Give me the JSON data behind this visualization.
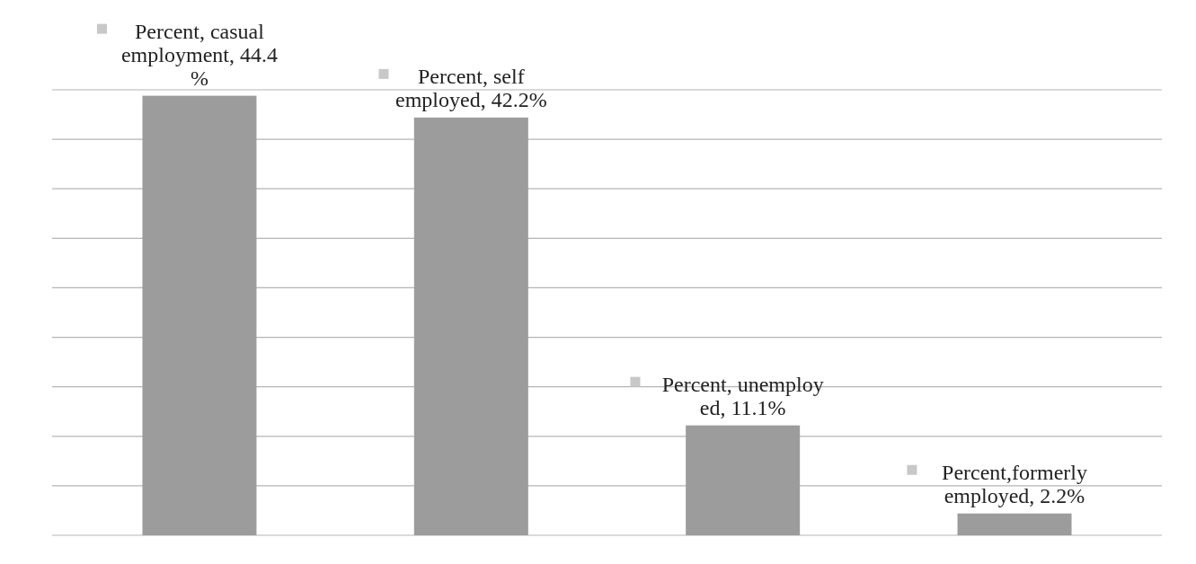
{
  "chart_data": {
    "type": "bar",
    "categories": [
      null,
      null,
      null,
      null
    ],
    "values": [
      44.4,
      42.2,
      11.1,
      2.2
    ],
    "color": "#9c9c9c",
    "value_labels": [
      "Percent, casual\nemployment, 44.4\n%",
      "Percent, self\nemployed, 42.2%",
      "Percent, unemploy\ned, 11.1%",
      "Percent,formerly\nemployed, 2.2%"
    ],
    "ylim": [
      0,
      45
    ],
    "yticks": [
      {
        "value": 0,
        "label": null
      },
      {
        "value": 5,
        "label": null
      },
      {
        "value": 10,
        "label": null
      },
      {
        "value": 15,
        "label": null
      },
      {
        "value": 20,
        "label": null
      },
      {
        "value": 25,
        "label": null
      },
      {
        "value": 30,
        "label": null
      },
      {
        "value": 35,
        "label": null
      },
      {
        "value": 40,
        "label": null
      },
      {
        "value": 45,
        "label": null
      }
    ],
    "grid": "y"
  }
}
